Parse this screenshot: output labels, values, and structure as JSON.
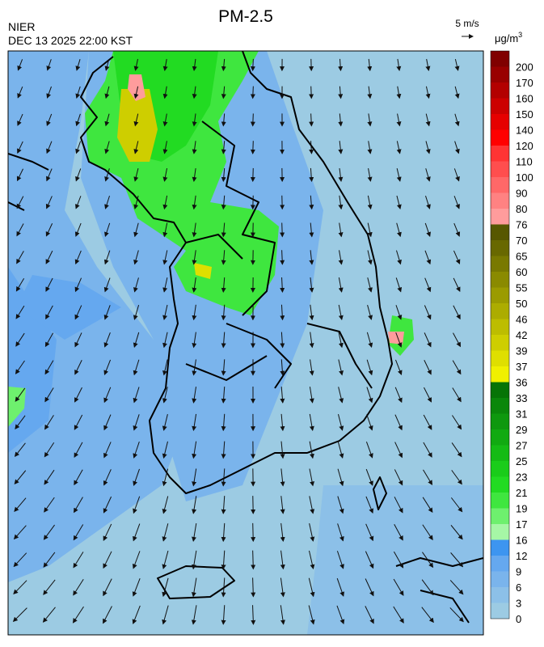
{
  "header": {
    "title": "PM-2.5",
    "agency": "NIER",
    "datetime": "DEC 13 2025 22:00 KST",
    "wind_scale": "5 m/s"
  },
  "legend": {
    "unit": "μg/m",
    "unit_exponent": "3",
    "levels": [
      0,
      3,
      6,
      9,
      12,
      16,
      17,
      19,
      21,
      23,
      25,
      27,
      29,
      31,
      33,
      36,
      37,
      39,
      42,
      46,
      50,
      55,
      60,
      65,
      70,
      76,
      80,
      90,
      100,
      110,
      120,
      140,
      150,
      160,
      170,
      200
    ],
    "colors": [
      "#9ccbe3",
      "#8cc0e8",
      "#7ab4ec",
      "#65a8ef",
      "#3d95f0",
      "#a6f7a6",
      "#6ef06e",
      "#3fe63f",
      "#22db22",
      "#1acc1a",
      "#15bb15",
      "#11aa11",
      "#0e980e",
      "#0a870a",
      "#067406",
      "#f0f000",
      "#dfdf00",
      "#cece00",
      "#bdbd00",
      "#acac00",
      "#9b9b00",
      "#8a8a00",
      "#797900",
      "#686800",
      "#575700",
      "#ff9c9c",
      "#ff8282",
      "#ff6868",
      "#ff4e4e",
      "#ff3434",
      "#ff0000",
      "#e60000",
      "#cc0000",
      "#b30000",
      "#990000",
      "#800000"
    ]
  }
}
